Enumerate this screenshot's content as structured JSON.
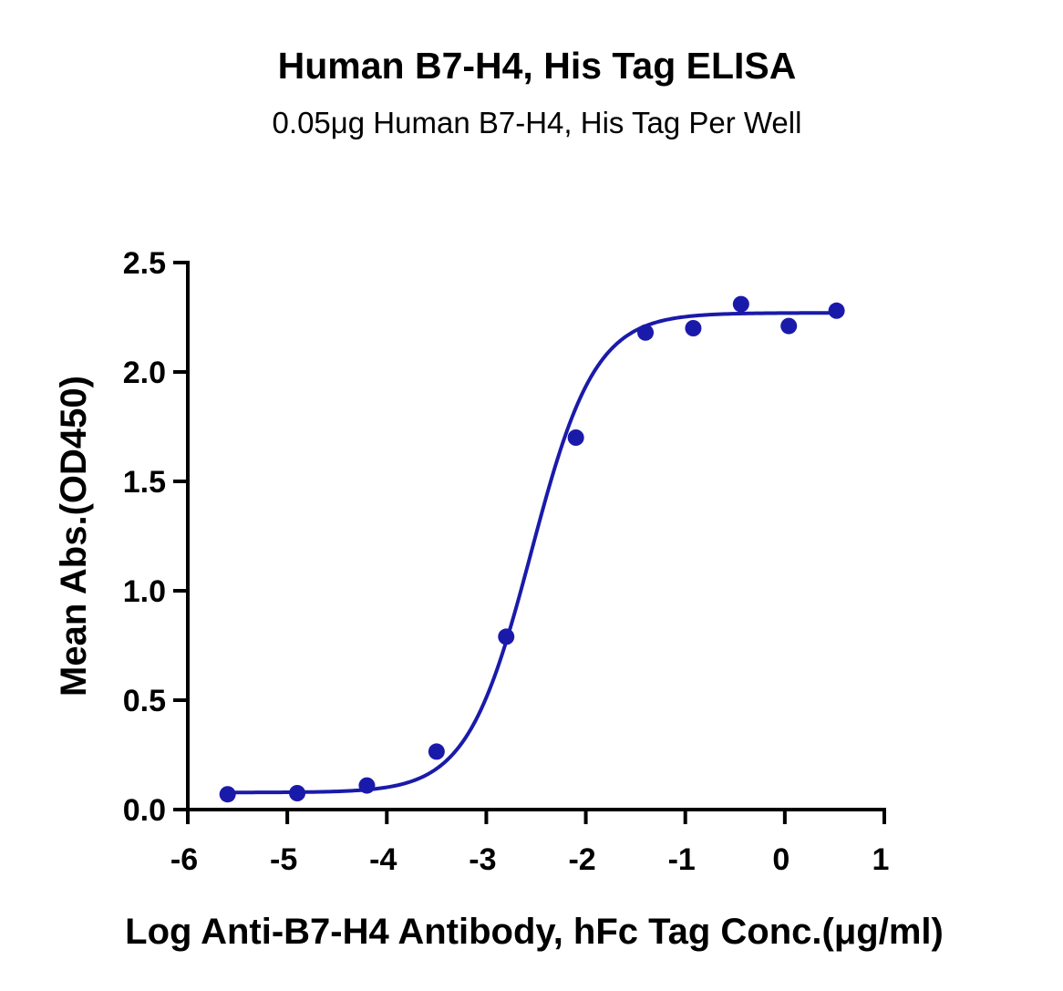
{
  "chart_data": {
    "type": "scatter",
    "title": "Human B7-H4, His Tag ELISA",
    "subtitle": "0.05μg Human B7-H4, His Tag Per Well",
    "xlabel": "Log Anti-B7-H4 Antibody, hFc Tag Conc.(μg/ml)",
    "ylabel": "Mean Abs.(OD450)",
    "xlim": [
      -6,
      1
    ],
    "ylim": [
      0,
      2.5
    ],
    "x_ticks": [
      "-6",
      "-5",
      "-4",
      "-3",
      "-2",
      "-1",
      "0",
      "1"
    ],
    "y_ticks": [
      "0.0",
      "0.5",
      "1.0",
      "1.5",
      "2.0",
      "2.5"
    ],
    "grid": false,
    "series": [
      {
        "points": [
          {
            "x": -5.6,
            "y": 0.07
          },
          {
            "x": -4.9,
            "y": 0.075
          },
          {
            "x": -4.2,
            "y": 0.11
          },
          {
            "x": -3.5,
            "y": 0.265
          },
          {
            "x": -2.8,
            "y": 0.79
          },
          {
            "x": -2.1,
            "y": 1.7
          },
          {
            "x": -1.4,
            "y": 2.18
          },
          {
            "x": -0.92,
            "y": 2.2
          },
          {
            "x": -0.44,
            "y": 2.31
          },
          {
            "x": 0.04,
            "y": 2.21
          },
          {
            "x": 0.52,
            "y": 2.28
          }
        ],
        "fit": {
          "model": "4PL",
          "bottom": 0.078,
          "top": 2.27,
          "logEC50": -2.55,
          "hill": 1.35
        }
      }
    ],
    "colors": {
      "series": "#1a1aaa",
      "axis": "#000000"
    }
  }
}
